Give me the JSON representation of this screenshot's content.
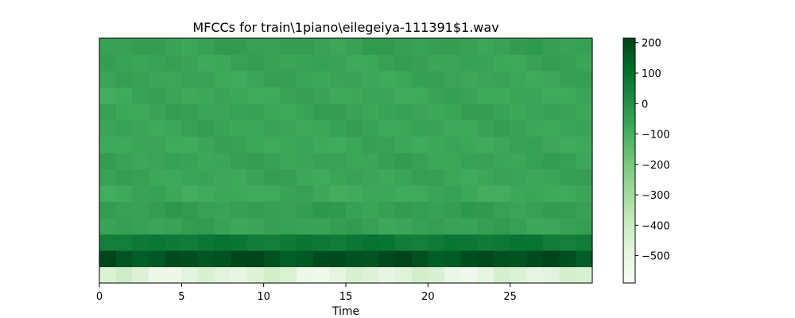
{
  "chart_data": {
    "type": "heatmap",
    "title": "MFCCs for train\\1piano\\eilegeiya-111391$1.wav",
    "xlabel": "Time",
    "ylabel": "",
    "xlim": [
      0,
      30
    ],
    "x_ticks": [
      0,
      5,
      10,
      15,
      20,
      25
    ],
    "x_tick_labels": [
      "0",
      "5",
      "10",
      "15",
      "20",
      "25"
    ],
    "y_ticks_visible": false,
    "grid": false,
    "colormap": "Greens",
    "colorbar": {
      "range": [
        -590,
        215
      ],
      "ticks": [
        200,
        100,
        0,
        -100,
        -200,
        -300,
        -400,
        -500
      ],
      "tick_labels": [
        "200",
        "100",
        "0",
        "−100",
        "−200",
        "−300",
        "−400",
        "−500"
      ]
    },
    "n_coefficients": 15,
    "n_frames": 30,
    "row_base_values": [
      -480,
      185,
      75,
      -55,
      -45,
      -75,
      -65,
      -60,
      -70,
      -65,
      -60,
      -70,
      -65,
      -60,
      -50
    ],
    "note": "row 0 = bottom coefficient; values approximate, per-frame variation applied"
  },
  "colors": {
    "background": "#ffffff",
    "axis": "#000000"
  }
}
